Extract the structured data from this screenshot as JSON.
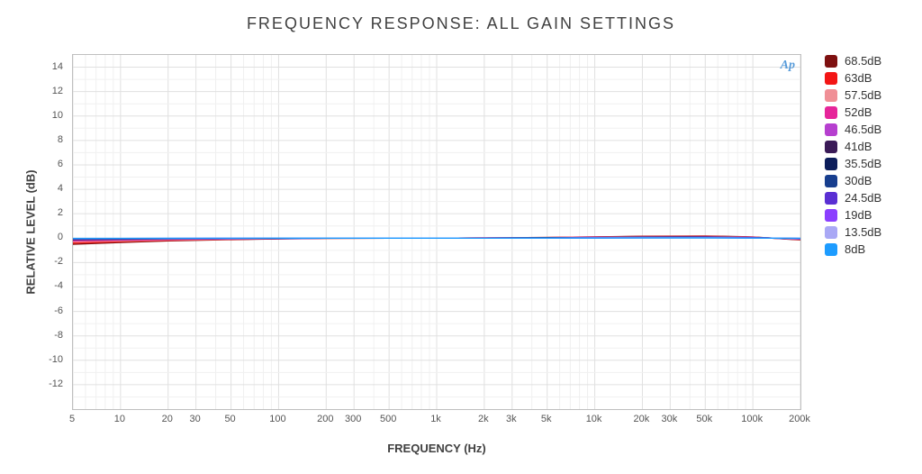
{
  "chart": {
    "type": "line",
    "title": "FREQUENCY RESPONSE: ALL GAIN SETTINGS",
    "title_fontsize": 18,
    "watermark": "Ap",
    "background_color": "#ffffff",
    "plot_border_color": "#bfbfbf",
    "grid_major_color": "#e0e0e0",
    "grid_minor_color": "#f0f0f0",
    "tick_font_color": "#555555",
    "tick_fontsize": 11,
    "label_fontsize": 13,
    "line_width": 1.4,
    "x_axis": {
      "label": "FREQUENCY (Hz)",
      "scale": "log",
      "lim": [
        5,
        200000
      ],
      "major_ticks": [
        5,
        10,
        20,
        30,
        50,
        100,
        200,
        300,
        500,
        1000,
        2000,
        3000,
        5000,
        10000,
        20000,
        30000,
        50000,
        100000,
        200000
      ],
      "major_labels": [
        "5",
        "10",
        "20",
        "30",
        "50",
        "100",
        "200",
        "300",
        "500",
        "1k",
        "2k",
        "3k",
        "5k",
        "10k",
        "20k",
        "30k",
        "50k",
        "100k",
        "200k"
      ],
      "minor_ticks": [
        6,
        7,
        8,
        9,
        40,
        60,
        70,
        80,
        90,
        400,
        600,
        700,
        800,
        900,
        4000,
        6000,
        7000,
        8000,
        9000,
        40000,
        60000,
        70000,
        80000,
        90000
      ]
    },
    "y_axis": {
      "label": "RELATIVE LEVEL (dB)",
      "scale": "linear",
      "lim": [
        -14,
        15
      ],
      "major_ticks": [
        -12,
        -10,
        -8,
        -6,
        -4,
        -2,
        0,
        2,
        4,
        6,
        8,
        10,
        12,
        14
      ],
      "minor_ticks": [
        -13,
        -11,
        -9,
        -7,
        -5,
        -3,
        -1,
        1,
        3,
        5,
        7,
        9,
        11,
        13
      ]
    },
    "legend": {
      "position": "right",
      "items": [
        {
          "label": "68.5dB",
          "color": "#7e1010"
        },
        {
          "label": "63dB",
          "color": "#f31515"
        },
        {
          "label": "57.5dB",
          "color": "#f08f96"
        },
        {
          "label": "52dB",
          "color": "#e6259a"
        },
        {
          "label": "46.5dB",
          "color": "#b63fcf"
        },
        {
          "label": "41dB",
          "color": "#3a1a57"
        },
        {
          "label": "35.5dB",
          "color": "#0c1d5a"
        },
        {
          "label": "30dB",
          "color": "#173e8e"
        },
        {
          "label": "24.5dB",
          "color": "#5a2fd3"
        },
        {
          "label": "19dB",
          "color": "#8b3fff"
        },
        {
          "label": "13.5dB",
          "color": "#a9a8f5"
        },
        {
          "label": "8dB",
          "color": "#1d9cff"
        }
      ]
    },
    "series": [
      {
        "name": "68.5dB",
        "color": "#7e1010",
        "x": [
          5,
          10,
          20,
          50,
          100,
          200,
          500,
          1000,
          2000,
          5000,
          10000,
          20000,
          50000,
          100000,
          200000
        ],
        "y": [
          -0.5,
          -0.35,
          -0.22,
          -0.12,
          -0.06,
          -0.02,
          0.0,
          0.0,
          0.02,
          0.05,
          0.1,
          0.15,
          0.18,
          0.1,
          -0.15
        ]
      },
      {
        "name": "63dB",
        "color": "#f31515",
        "x": [
          5,
          10,
          20,
          50,
          100,
          200,
          500,
          1000,
          2000,
          5000,
          10000,
          20000,
          50000,
          100000,
          200000
        ],
        "y": [
          -0.4,
          -0.28,
          -0.18,
          -0.1,
          -0.05,
          -0.01,
          0.0,
          0.0,
          0.02,
          0.05,
          0.1,
          0.13,
          0.16,
          0.08,
          -0.12
        ]
      },
      {
        "name": "57.5dB",
        "color": "#f08f96",
        "x": [
          5,
          10,
          20,
          50,
          100,
          200,
          500,
          1000,
          2000,
          5000,
          10000,
          20000,
          50000,
          100000,
          200000
        ],
        "y": [
          -0.3,
          -0.22,
          -0.14,
          -0.08,
          -0.04,
          -0.01,
          0.0,
          0.0,
          0.02,
          0.04,
          0.08,
          0.12,
          0.14,
          0.07,
          -0.1
        ]
      },
      {
        "name": "52dB",
        "color": "#e6259a",
        "x": [
          5,
          10,
          20,
          50,
          100,
          200,
          500,
          1000,
          2000,
          5000,
          10000,
          20000,
          50000,
          100000,
          200000
        ],
        "y": [
          -0.22,
          -0.16,
          -0.1,
          -0.06,
          -0.03,
          0.0,
          0.0,
          0.0,
          0.02,
          0.04,
          0.07,
          0.1,
          0.12,
          0.06,
          -0.08
        ]
      },
      {
        "name": "46.5dB",
        "color": "#b63fcf",
        "x": [
          5,
          10,
          20,
          50,
          100,
          200,
          500,
          1000,
          2000,
          5000,
          10000,
          20000,
          50000,
          100000,
          200000
        ],
        "y": [
          -0.16,
          -0.12,
          -0.08,
          -0.05,
          -0.02,
          0.0,
          0.0,
          0.0,
          0.01,
          0.03,
          0.06,
          0.09,
          0.1,
          0.05,
          -0.06
        ]
      },
      {
        "name": "41dB",
        "color": "#3a1a57",
        "x": [
          5,
          10,
          20,
          50,
          100,
          200,
          500,
          1000,
          2000,
          5000,
          10000,
          20000,
          50000,
          100000,
          200000
        ],
        "y": [
          -0.12,
          -0.09,
          -0.06,
          -0.04,
          -0.02,
          0.0,
          0.0,
          0.0,
          0.01,
          0.03,
          0.05,
          0.08,
          0.09,
          0.04,
          -0.05
        ]
      },
      {
        "name": "35.5dB",
        "color": "#0c1d5a",
        "x": [
          5,
          10,
          20,
          50,
          100,
          200,
          500,
          1000,
          2000,
          5000,
          10000,
          20000,
          50000,
          100000,
          200000
        ],
        "y": [
          -0.09,
          -0.07,
          -0.05,
          -0.03,
          -0.01,
          0.0,
          0.0,
          0.0,
          0.01,
          0.02,
          0.04,
          0.06,
          0.07,
          0.03,
          -0.04
        ]
      },
      {
        "name": "30dB",
        "color": "#173e8e",
        "x": [
          5,
          10,
          20,
          50,
          100,
          200,
          500,
          1000,
          2000,
          5000,
          10000,
          20000,
          50000,
          100000,
          200000
        ],
        "y": [
          -0.07,
          -0.05,
          -0.04,
          -0.02,
          -0.01,
          0.0,
          0.0,
          0.0,
          0.01,
          0.02,
          0.03,
          0.05,
          0.06,
          0.03,
          -0.03
        ]
      },
      {
        "name": "24.5dB",
        "color": "#5a2fd3",
        "x": [
          5,
          10,
          20,
          50,
          100,
          200,
          500,
          1000,
          2000,
          5000,
          10000,
          20000,
          50000,
          100000,
          200000
        ],
        "y": [
          -0.05,
          -0.04,
          -0.03,
          -0.02,
          -0.01,
          0.0,
          0.0,
          0.0,
          0.0,
          0.01,
          0.03,
          0.04,
          0.05,
          0.02,
          -0.03
        ]
      },
      {
        "name": "19dB",
        "color": "#8b3fff",
        "x": [
          5,
          10,
          20,
          50,
          100,
          200,
          500,
          1000,
          2000,
          5000,
          10000,
          20000,
          50000,
          100000,
          200000
        ],
        "y": [
          -0.04,
          -0.03,
          -0.02,
          -0.01,
          -0.01,
          0.0,
          0.0,
          0.0,
          0.0,
          0.01,
          0.02,
          0.03,
          0.04,
          0.02,
          -0.02
        ]
      },
      {
        "name": "13.5dB",
        "color": "#a9a8f5",
        "x": [
          5,
          10,
          20,
          50,
          100,
          200,
          500,
          1000,
          2000,
          5000,
          10000,
          20000,
          50000,
          100000,
          200000
        ],
        "y": [
          -0.03,
          -0.02,
          -0.02,
          -0.01,
          0.0,
          0.0,
          0.0,
          0.0,
          0.0,
          0.01,
          0.02,
          0.03,
          0.03,
          0.01,
          -0.02
        ]
      },
      {
        "name": "8dB",
        "color": "#1d9cff",
        "x": [
          5,
          10,
          20,
          50,
          100,
          200,
          500,
          1000,
          2000,
          5000,
          10000,
          20000,
          50000,
          100000,
          200000
        ],
        "y": [
          -0.02,
          -0.02,
          -0.01,
          -0.01,
          0.0,
          0.0,
          0.0,
          0.0,
          0.0,
          0.01,
          0.01,
          0.02,
          0.02,
          0.01,
          -0.01
        ]
      }
    ]
  }
}
